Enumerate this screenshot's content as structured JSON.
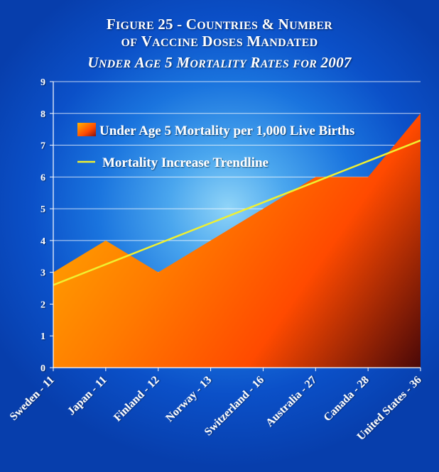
{
  "title": {
    "line1": "Figure 25 - Countries & Number",
    "line2": "of Vaccine Doses Mandated",
    "line3": "Under Age 5 Mortality Rates for 2007"
  },
  "chart_data": {
    "type": "area",
    "categories": [
      "Sweden - 11",
      "Japan - 11",
      "Finland - 12",
      "Norway - 13",
      "Switzerland - 16",
      "Australia - 27",
      "Canada - 28",
      "United States - 36"
    ],
    "series": [
      {
        "name": "Under Age 5 Mortality per 1,000 Live Births",
        "type": "area",
        "values": [
          3,
          4,
          3,
          4,
          5,
          6,
          6,
          8
        ]
      },
      {
        "name": "Mortality Increase Trendline",
        "type": "line",
        "values": [
          2.6,
          3.25,
          3.9,
          4.55,
          5.2,
          5.85,
          6.5,
          7.15
        ]
      }
    ],
    "ylim": [
      0,
      9
    ],
    "yticks": [
      0,
      1,
      2,
      3,
      4,
      5,
      6,
      7,
      8,
      9
    ],
    "grid": true,
    "legend_position": "top-left inside plot",
    "colors": {
      "area_top": "#ffb400",
      "area_mid": "#ff4a00",
      "area_dark": "#4a0808",
      "trendline": "#f0f030",
      "gridline": "#ffffff"
    }
  }
}
